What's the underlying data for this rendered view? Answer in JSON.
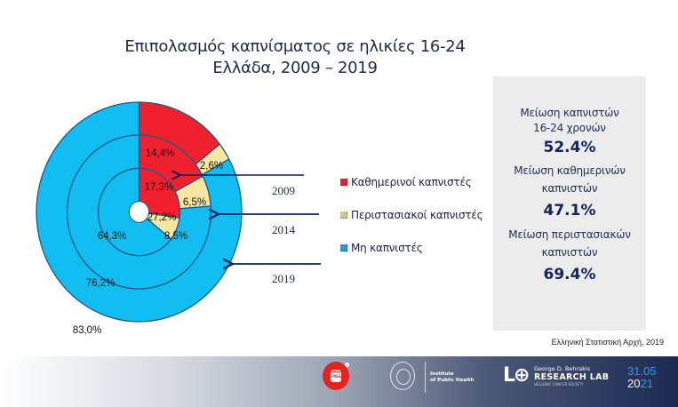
{
  "header": {
    "title_line1": "Επιπολασμός καπνίσματος σε ηλικίες 16-24",
    "title_line2": "Ελλάδα, 2009 – 2019"
  },
  "chart_data": {
    "type": "pie",
    "subtype": "nested-donut",
    "title": "Επιπολασμός καπνίσματος σε ηλικίες 16-24 — Ελλάδα, 2009 – 2019",
    "categories": [
      "Καθημερινοί καπνιστές",
      "Περιστασιακοί καπνιστές",
      "Μη καπνιστές"
    ],
    "colors": [
      "#f0202e",
      "#f9e6a3",
      "#12bdf1"
    ],
    "rings": [
      {
        "year": "2009",
        "position": "inner",
        "values": [
          27.2,
          8.5,
          64.3
        ],
        "labels": [
          "27,2%",
          "8,5%",
          "64,3%"
        ]
      },
      {
        "year": "2014",
        "position": "middle",
        "values": [
          17.3,
          6.5,
          76.2
        ],
        "labels": [
          "17,3%",
          "6,5%",
          "76,2%"
        ]
      },
      {
        "year": "2019",
        "position": "outer",
        "values": [
          14.4,
          2.6,
          83.0
        ],
        "labels": [
          "14,4%",
          "2,6%",
          "83,0%"
        ]
      }
    ],
    "legend_position": "right",
    "unit": "%"
  },
  "years": [
    "2009",
    "2014",
    "2019"
  ],
  "legend": [
    {
      "label": "Καθημερινοί καπνιστές",
      "color": "#e3232e"
    },
    {
      "label": "Περιστασιακοί καπνιστές",
      "color": "#d8c58a"
    },
    {
      "label": "Μη καπνιστές",
      "color": "#1d9ed9"
    }
  ],
  "summary_panel": {
    "items": [
      {
        "line1": "Μείωση καπνιστών",
        "line2": "16-24 χρονών",
        "value": "52.4%"
      },
      {
        "line1": "Μείωση καθημερινών",
        "line2": "καπνιστών",
        "value": "47.1%"
      },
      {
        "line1": "Μείωση περιστασιακών",
        "line2": "καπνιστών",
        "value": "69.4%"
      }
    ]
  },
  "source": "Ελληνική Στατιστική Αρχή, 2019",
  "footer": {
    "logo_red_text": "SMOKE FREE",
    "institute_line1": "Institute",
    "institute_line2": "of Public Health",
    "lab_mark": "LAB",
    "lab_line1": "George D. Behrakis",
    "lab_line2": "RESEARCH LAB",
    "lab_line3": "HELLENIC CANCER SOCIETY",
    "date_line1": "31.05",
    "date_line2_prefix": "20",
    "date_line2_suffix": "21"
  }
}
